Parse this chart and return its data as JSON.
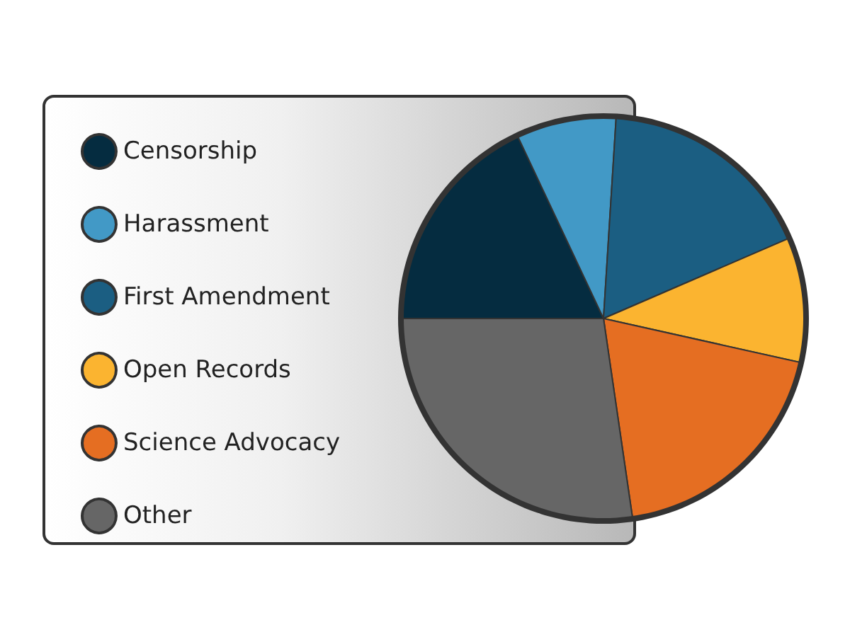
{
  "chart_data": {
    "type": "pie",
    "categories": [
      "Censorship",
      "Harassment",
      "First Amendment",
      "Open Records",
      "Science Advocacy",
      "Other"
    ],
    "values": [
      18,
      8,
      17.5,
      10,
      19.2,
      27.3
    ],
    "colors": [
      "#052c40",
      "#4299c6",
      "#1b5e82",
      "#fbb430",
      "#e56e22",
      "#666666"
    ],
    "legend": "left"
  }
}
